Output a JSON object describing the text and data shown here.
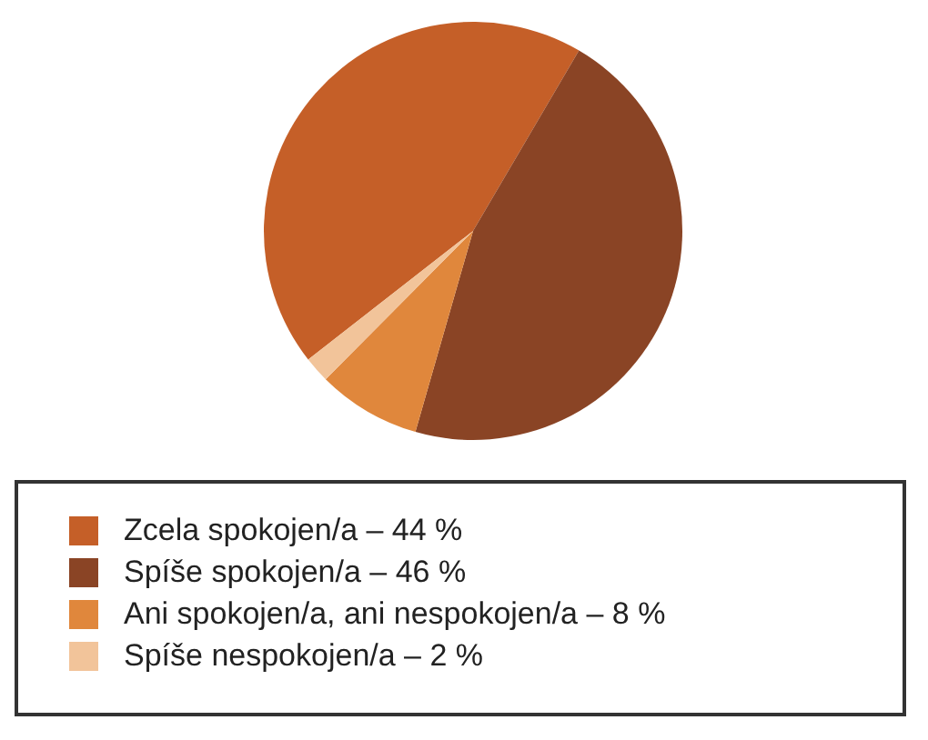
{
  "chart_data": {
    "type": "pie",
    "categories": [
      "Zcela spokojen/a – 44 %",
      "Spíše spokojen/a – 46 %",
      "Ani spokojen/a, ani nespokojen/a – 8 %",
      "Spíše nespokojen/a – 2 %"
    ],
    "values": [
      44,
      46,
      8,
      2
    ],
    "colors": [
      "#c55f28",
      "#8a4425",
      "#e0873c",
      "#f2c49a"
    ],
    "legend": "bottom"
  }
}
